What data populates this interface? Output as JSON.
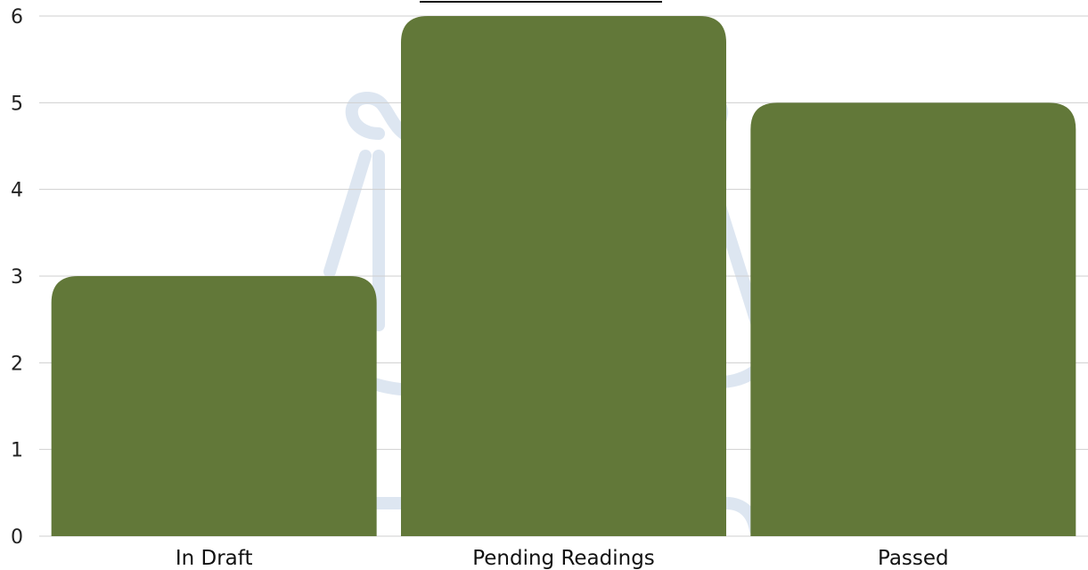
{
  "chart_data": {
    "type": "bar",
    "title": "",
    "xlabel": "",
    "ylabel": "",
    "categories": [
      "In Draft",
      "Pending Readings",
      "Passed"
    ],
    "values": [
      3,
      6,
      5
    ],
    "ylim": [
      0,
      6
    ],
    "yticks": [
      "0",
      "1",
      "2",
      "3",
      "4",
      "5",
      "6"
    ],
    "grid": true,
    "legend": "none",
    "bar_color": "#627839",
    "watermark": "scales-of-justice-icon"
  }
}
